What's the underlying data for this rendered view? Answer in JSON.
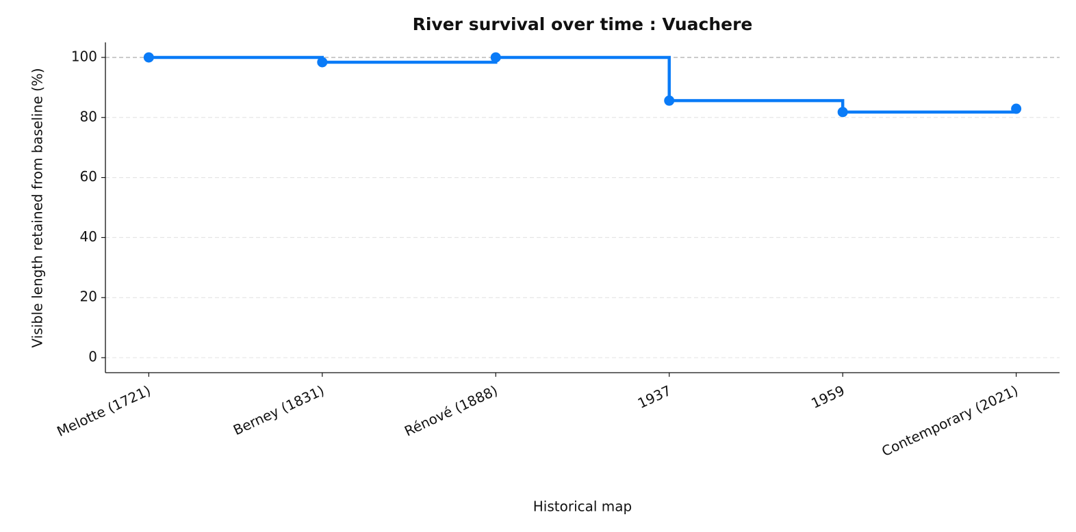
{
  "chart_data": {
    "type": "step",
    "title": "River survival over time : Vuachere",
    "x_label": "Historical map",
    "y_label": "Visible length retained from baseline (%)",
    "categories": [
      "Melotte (1721)",
      "Berney (1831)",
      "Rénové (1888)",
      "1937",
      "1959",
      "Contemporary (2021)"
    ],
    "series": [
      {
        "name": "Vuachere",
        "color": "#0a7bf7",
        "values": [
          100,
          98.4,
          100,
          85.6,
          81.8,
          82.9
        ]
      }
    ],
    "reference_line": 100,
    "ylim": [
      -5,
      105
    ],
    "yticks": [
      0,
      20,
      40,
      60,
      80,
      100
    ],
    "grid": true
  }
}
